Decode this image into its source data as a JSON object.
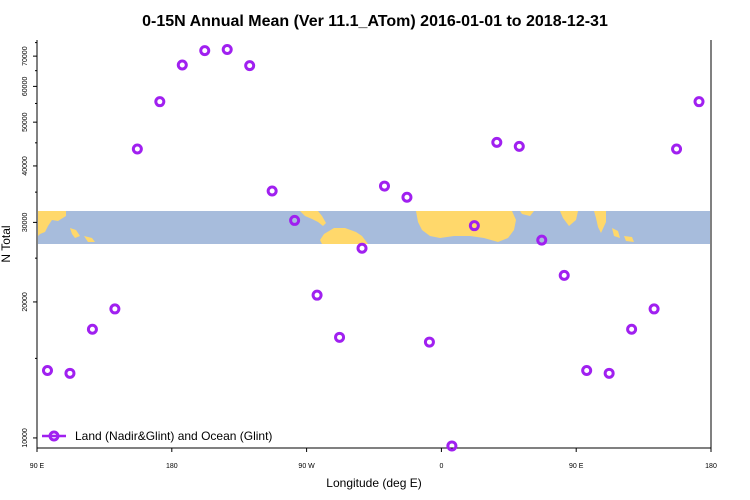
{
  "chart_data": {
    "type": "scatter",
    "title": "0-15N Annual Mean (Ver 11.1_ATom)   2016-01-01 to 2018-12-31",
    "xlabel": "Longitude (deg E)",
    "ylabel": "N Total",
    "x_tick_labels": [
      "90 E",
      "180",
      "90 W",
      "0",
      "90 E",
      "180"
    ],
    "y_tick_labels": [
      "10000",
      "20000",
      "30000",
      "40000",
      "50000",
      "60000",
      "70000"
    ],
    "y_scale": "log",
    "ylim": [
      9500,
      76000
    ],
    "series": [
      {
        "name": "Land (Nadir&Glint) and Ocean (Glint)",
        "color": "#a020f0",
        "marker": "open-circle",
        "x": [
          97,
          112,
          127,
          142,
          157,
          172,
          187,
          202,
          217,
          232,
          247,
          262,
          277,
          292,
          307,
          322,
          337,
          352,
          367,
          382,
          397,
          412,
          427,
          442,
          457,
          472,
          487,
          502,
          517,
          532
        ],
        "y": [
          14100,
          13900,
          17400,
          19300,
          43600,
          55500,
          66900,
          72000,
          72400,
          66700,
          35200,
          30300,
          20700,
          16700,
          26300,
          36100,
          34100,
          16300,
          9600,
          29500,
          45100,
          44200,
          27400,
          22900,
          14100,
          13900,
          17400,
          19300,
          43600,
          55500
        ]
      }
    ],
    "legend_position": "bottom-left",
    "grid": false,
    "background_map": "world map strip, 0-15N latitude band, land #ffd86b, ocean #a7bcdc"
  }
}
